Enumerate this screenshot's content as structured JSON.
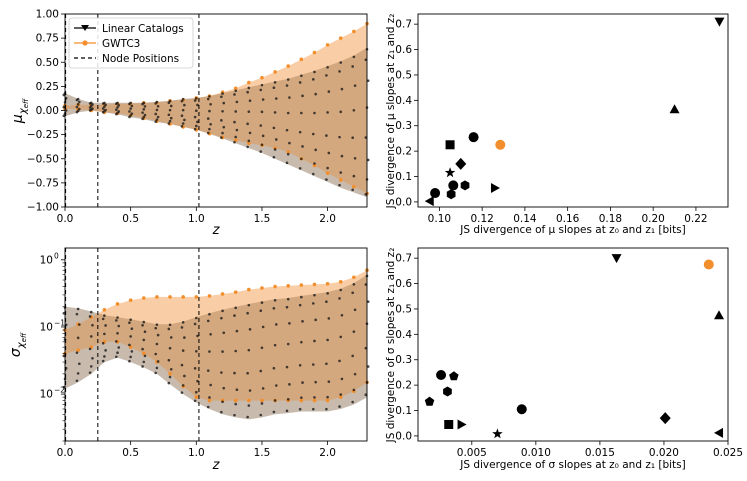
{
  "colors": {
    "gwtc3": "#f28e2b",
    "gwtc3_band": "#f7be8a",
    "linear": "#000000",
    "overlap": "#c8a07c",
    "grey_band": "#c8c8c8"
  },
  "chart_data": [
    {
      "id": "mu-vs-z",
      "type": "line",
      "xlabel": "z",
      "ylabel": "μ_χeff",
      "ylabel_main": "μ",
      "ylabel_sub": "χ",
      "ylabel_subsub": "eff",
      "xlim": [
        0,
        2.3
      ],
      "ylim": [
        -1.0,
        1.0
      ],
      "xticks": [
        "0.0",
        "0.5",
        "1.0",
        "1.5",
        "2.0"
      ],
      "yticks": [
        "1.00",
        "0.75",
        "0.50",
        "0.25",
        "0.00",
        "−0.25",
        "−0.50",
        "−0.75",
        "−1.00"
      ],
      "ytick_values": [
        1.0,
        0.75,
        0.5,
        0.25,
        0.0,
        -0.25,
        -0.5,
        -0.75,
        -1.0
      ],
      "xtick_values": [
        0,
        0.5,
        1.0,
        1.5,
        2.0
      ],
      "node_positions": [
        0.0,
        0.25,
        1.02
      ],
      "legend": {
        "placement": "top-left",
        "entries": [
          "Linear Catalogs",
          "GWTC3",
          "Node Positions"
        ]
      },
      "series": [
        {
          "name": "GWTC3 upper",
          "x": [
            0.0,
            0.1,
            0.2,
            0.3,
            0.4,
            0.5,
            0.6,
            0.7,
            0.8,
            0.9,
            1.0,
            1.1,
            1.2,
            1.3,
            1.4,
            1.5,
            1.6,
            1.7,
            1.8,
            1.9,
            2.0,
            2.1,
            2.2,
            2.3
          ],
          "values": [
            0.05,
            0.06,
            0.06,
            0.06,
            0.07,
            0.07,
            0.08,
            0.08,
            0.1,
            0.11,
            0.13,
            0.15,
            0.19,
            0.23,
            0.29,
            0.34,
            0.4,
            0.46,
            0.53,
            0.6,
            0.68,
            0.75,
            0.82,
            0.9
          ]
        },
        {
          "name": "GWTC3 lower",
          "x": [
            0.0,
            0.1,
            0.2,
            0.3,
            0.4,
            0.5,
            0.6,
            0.7,
            0.8,
            0.9,
            1.0,
            1.1,
            1.2,
            1.3,
            1.4,
            1.5,
            1.6,
            1.7,
            1.8,
            1.9,
            2.0,
            2.1,
            2.2,
            2.3
          ],
          "values": [
            0.02,
            0.01,
            0.0,
            -0.02,
            -0.03,
            -0.05,
            -0.08,
            -0.11,
            -0.14,
            -0.17,
            -0.2,
            -0.24,
            -0.28,
            -0.31,
            -0.34,
            -0.36,
            -0.39,
            -0.43,
            -0.5,
            -0.57,
            -0.65,
            -0.72,
            -0.79,
            -0.86
          ]
        },
        {
          "name": "Linear upper",
          "x": [
            0.0,
            0.1,
            0.2,
            0.3,
            0.4,
            0.5,
            0.6,
            0.7,
            0.8,
            0.9,
            1.0,
            1.1,
            1.2,
            1.3,
            1.4,
            1.5,
            1.6,
            1.7,
            1.8,
            1.9,
            2.0,
            2.1,
            2.2,
            2.3
          ],
          "values": [
            0.18,
            0.12,
            0.08,
            0.08,
            0.08,
            0.08,
            0.08,
            0.09,
            0.1,
            0.12,
            0.13,
            0.15,
            0.18,
            0.21,
            0.24,
            0.27,
            0.3,
            0.33,
            0.37,
            0.41,
            0.46,
            0.51,
            0.57,
            0.65
          ]
        },
        {
          "name": "Linear lower",
          "x": [
            0.0,
            0.1,
            0.2,
            0.3,
            0.4,
            0.5,
            0.6,
            0.7,
            0.8,
            0.9,
            1.0,
            1.1,
            1.2,
            1.3,
            1.4,
            1.5,
            1.6,
            1.7,
            1.8,
            1.9,
            2.0,
            2.1,
            2.2,
            2.3
          ],
          "values": [
            -0.06,
            -0.02,
            0.0,
            -0.02,
            -0.04,
            -0.07,
            -0.09,
            -0.12,
            -0.14,
            -0.17,
            -0.2,
            -0.24,
            -0.29,
            -0.34,
            -0.39,
            -0.44,
            -0.5,
            -0.56,
            -0.62,
            -0.68,
            -0.74,
            -0.8,
            -0.85,
            -0.9
          ]
        }
      ]
    },
    {
      "id": "js-mu",
      "type": "scatter",
      "xlabel": "JS divergence of μ slopes at z₀ and z₁ [bits]",
      "ylabel": "JS divergence of μ slopes at z₁ and z₂",
      "xlim": [
        0.09,
        0.235
      ],
      "ylim": [
        -0.02,
        0.74
      ],
      "xticks": [
        "0.10",
        "0.12",
        "0.14",
        "0.16",
        "0.18",
        "0.20",
        "0.22"
      ],
      "xtick_values": [
        0.1,
        0.12,
        0.14,
        0.16,
        0.18,
        0.2,
        0.22
      ],
      "yticks": [
        "0.0",
        "0.1",
        "0.2",
        "0.3",
        "0.4",
        "0.5",
        "0.6",
        "0.7"
      ],
      "ytick_values": [
        0.0,
        0.1,
        0.2,
        0.3,
        0.4,
        0.5,
        0.6,
        0.7
      ],
      "points": [
        {
          "x": 0.0955,
          "y": 0.003,
          "marker": "triangle-left",
          "color": "#000000"
        },
        {
          "x": 0.098,
          "y": 0.035,
          "marker": "circle",
          "color": "#000000"
        },
        {
          "x": 0.1055,
          "y": 0.03,
          "marker": "hexagon",
          "color": "#000000"
        },
        {
          "x": 0.1065,
          "y": 0.065,
          "marker": "circle",
          "color": "#000000"
        },
        {
          "x": 0.112,
          "y": 0.065,
          "marker": "hexagon",
          "color": "#000000"
        },
        {
          "x": 0.105,
          "y": 0.115,
          "marker": "star",
          "color": "#000000"
        },
        {
          "x": 0.11,
          "y": 0.15,
          "marker": "diamond",
          "color": "#000000"
        },
        {
          "x": 0.105,
          "y": 0.225,
          "marker": "square",
          "color": "#000000"
        },
        {
          "x": 0.116,
          "y": 0.255,
          "marker": "circle",
          "color": "#000000"
        },
        {
          "x": 0.1285,
          "y": 0.225,
          "marker": "circle",
          "color": "#f28e2b"
        },
        {
          "x": 0.126,
          "y": 0.055,
          "marker": "triangle-right",
          "color": "#000000"
        },
        {
          "x": 0.21,
          "y": 0.365,
          "marker": "triangle-up",
          "color": "#000000"
        },
        {
          "x": 0.231,
          "y": 0.71,
          "marker": "triangle-down",
          "color": "#000000"
        }
      ]
    },
    {
      "id": "sigma-vs-z",
      "type": "line",
      "xlabel": "z",
      "ylabel": "σ_χeff",
      "ylabel_main": "σ",
      "ylabel_sub": "χ",
      "ylabel_subsub": "eff",
      "yscale": "log",
      "xlim": [
        0,
        2.3
      ],
      "ylim": [
        0.002,
        1.5
      ],
      "xticks": [
        "0.0",
        "0.5",
        "1.0",
        "1.5",
        "2.0"
      ],
      "xtick_values": [
        0,
        0.5,
        1.0,
        1.5,
        2.0
      ],
      "yticks": [
        {
          "base": "10",
          "exp": "0",
          "value": 1
        },
        {
          "base": "10",
          "exp": "−1",
          "value": 0.1
        },
        {
          "base": "10",
          "exp": "−2",
          "value": 0.01
        }
      ],
      "node_positions": [
        0.0,
        0.25,
        1.02
      ],
      "series": [
        {
          "name": "GWTC3 upper",
          "x": [
            0.0,
            0.1,
            0.2,
            0.3,
            0.4,
            0.5,
            0.6,
            0.7,
            0.8,
            0.9,
            1.0,
            1.1,
            1.2,
            1.3,
            1.4,
            1.5,
            1.6,
            1.7,
            1.8,
            1.9,
            2.0,
            2.1,
            2.2,
            2.3
          ],
          "values": [
            0.09,
            0.11,
            0.14,
            0.18,
            0.22,
            0.25,
            0.27,
            0.28,
            0.28,
            0.28,
            0.28,
            0.29,
            0.31,
            0.33,
            0.36,
            0.38,
            0.4,
            0.41,
            0.42,
            0.43,
            0.44,
            0.47,
            0.55,
            0.7
          ]
        },
        {
          "name": "GWTC3 lower",
          "x": [
            0.0,
            0.1,
            0.2,
            0.3,
            0.4,
            0.5,
            0.6,
            0.7,
            0.8,
            0.9,
            1.0,
            1.1,
            1.2,
            1.3,
            1.4,
            1.5,
            1.6,
            1.7,
            1.8,
            1.9,
            2.0,
            2.1,
            2.2,
            2.3
          ],
          "values": [
            0.04,
            0.045,
            0.05,
            0.06,
            0.06,
            0.05,
            0.04,
            0.03,
            0.02,
            0.013,
            0.009,
            0.008,
            0.008,
            0.008,
            0.008,
            0.008,
            0.008,
            0.008,
            0.008,
            0.008,
            0.008,
            0.009,
            0.011,
            0.015
          ]
        },
        {
          "name": "Linear upper",
          "x": [
            0.0,
            0.1,
            0.2,
            0.3,
            0.4,
            0.5,
            0.6,
            0.7,
            0.8,
            0.9,
            1.0,
            1.1,
            1.2,
            1.3,
            1.4,
            1.5,
            1.6,
            1.7,
            1.8,
            1.9,
            2.0,
            2.1,
            2.2,
            2.3
          ],
          "values": [
            0.2,
            0.19,
            0.17,
            0.15,
            0.14,
            0.13,
            0.12,
            0.11,
            0.11,
            0.12,
            0.14,
            0.16,
            0.18,
            0.2,
            0.22,
            0.24,
            0.26,
            0.27,
            0.29,
            0.31,
            0.33,
            0.37,
            0.45,
            0.6
          ]
        },
        {
          "name": "Linear lower",
          "x": [
            0.0,
            0.1,
            0.2,
            0.3,
            0.4,
            0.5,
            0.6,
            0.7,
            0.8,
            0.9,
            1.0,
            1.1,
            1.2,
            1.3,
            1.4,
            1.5,
            1.6,
            1.7,
            1.8,
            1.9,
            2.0,
            2.1,
            2.2,
            2.3
          ],
          "values": [
            0.012,
            0.015,
            0.02,
            0.03,
            0.035,
            0.03,
            0.025,
            0.02,
            0.014,
            0.01,
            0.0075,
            0.006,
            0.005,
            0.0045,
            0.0042,
            0.0045,
            0.005,
            0.0052,
            0.0055,
            0.0055,
            0.0055,
            0.006,
            0.007,
            0.009
          ]
        }
      ]
    },
    {
      "id": "js-sigma",
      "type": "scatter",
      "xlabel": "JS divergence of σ slopes at z₀ and z₁ [bits]",
      "ylabel": "JS divergence of σ slopes at z₁ and z₂",
      "xlim": [
        0.0008,
        0.025
      ],
      "ylim": [
        -0.02,
        0.74
      ],
      "xticks": [
        "0.005",
        "0.010",
        "0.015",
        "0.020",
        "0.025"
      ],
      "xtick_values": [
        0.005,
        0.01,
        0.015,
        0.02,
        0.025
      ],
      "yticks": [
        "0.0",
        "0.1",
        "0.2",
        "0.3",
        "0.4",
        "0.5",
        "0.6",
        "0.7"
      ],
      "ytick_values": [
        0.0,
        0.1,
        0.2,
        0.3,
        0.4,
        0.5,
        0.6,
        0.7
      ],
      "points": [
        {
          "x": 0.0017,
          "y": 0.135,
          "marker": "pentagon",
          "color": "#000000"
        },
        {
          "x": 0.0026,
          "y": 0.24,
          "marker": "circle",
          "color": "#000000"
        },
        {
          "x": 0.0036,
          "y": 0.235,
          "marker": "pentagon",
          "color": "#000000"
        },
        {
          "x": 0.0031,
          "y": 0.175,
          "marker": "hexagon",
          "color": "#000000"
        },
        {
          "x": 0.0032,
          "y": 0.045,
          "marker": "square",
          "color": "#000000"
        },
        {
          "x": 0.0042,
          "y": 0.045,
          "marker": "triangle-right",
          "color": "#000000"
        },
        {
          "x": 0.007,
          "y": 0.008,
          "marker": "star",
          "color": "#000000"
        },
        {
          "x": 0.0089,
          "y": 0.105,
          "marker": "circle",
          "color": "#000000"
        },
        {
          "x": 0.0163,
          "y": 0.7,
          "marker": "triangle-down",
          "color": "#000000"
        },
        {
          "x": 0.0201,
          "y": 0.07,
          "marker": "diamond",
          "color": "#000000"
        },
        {
          "x": 0.0235,
          "y": 0.675,
          "marker": "circle",
          "color": "#f28e2b"
        },
        {
          "x": 0.0243,
          "y": 0.475,
          "marker": "triangle-up",
          "color": "#000000"
        },
        {
          "x": 0.0243,
          "y": 0.012,
          "marker": "triangle-left",
          "color": "#000000"
        }
      ]
    }
  ]
}
